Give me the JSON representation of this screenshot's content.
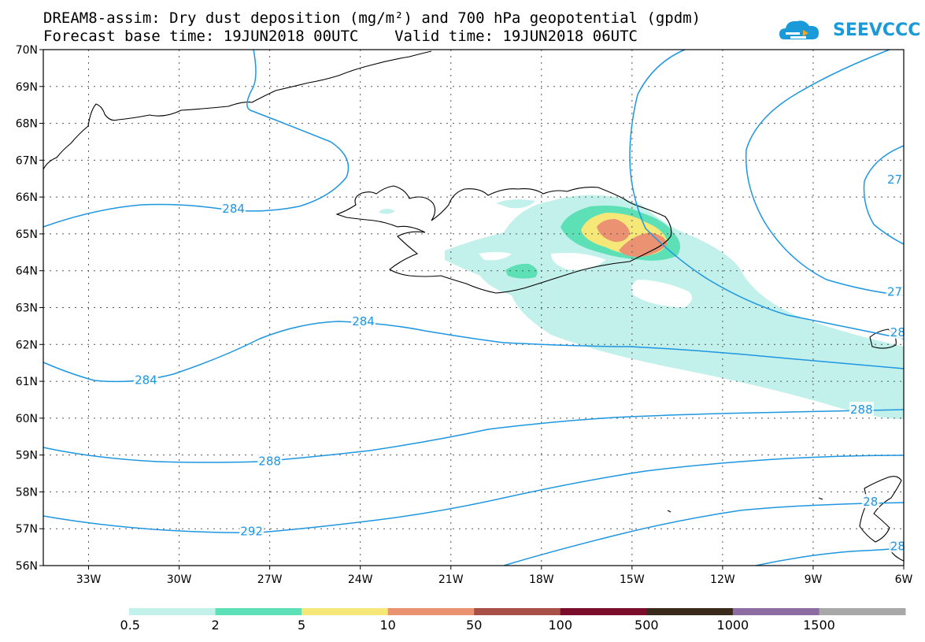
{
  "title_line1": "DREAM8-assim: Dry dust deposition (mg/m²) and 700 hPa geopotential (gpdm)",
  "title_line2": "Forecast base time: 19JUN2018 00UTC    Valid time: 19JUN2018 06UTC",
  "logo": {
    "text": "SEEVCCC",
    "icon": "cloud-logo-icon",
    "color": "#1a9ad9"
  },
  "map": {
    "lon_range": [
      -34.5,
      -6
    ],
    "lat_range": [
      56,
      70
    ],
    "lon_ticks": [
      {
        "v": -33,
        "label": "33W"
      },
      {
        "v": -30,
        "label": "30W"
      },
      {
        "v": -27,
        "label": "27W"
      },
      {
        "v": -24,
        "label": "24W"
      },
      {
        "v": -21,
        "label": "21W"
      },
      {
        "v": -18,
        "label": "18W"
      },
      {
        "v": -15,
        "label": "15W"
      },
      {
        "v": -12,
        "label": "12W"
      },
      {
        "v": -9,
        "label": "9W"
      },
      {
        "v": -6,
        "label": "6W"
      }
    ],
    "lat_ticks": [
      {
        "v": 56,
        "label": "56N"
      },
      {
        "v": 57,
        "label": "57N"
      },
      {
        "v": 58,
        "label": "58N"
      },
      {
        "v": 59,
        "label": "59N"
      },
      {
        "v": 60,
        "label": "60N"
      },
      {
        "v": 61,
        "label": "61N"
      },
      {
        "v": 62,
        "label": "62N"
      },
      {
        "v": 63,
        "label": "63N"
      },
      {
        "v": 64,
        "label": "64N"
      },
      {
        "v": 65,
        "label": "65N"
      },
      {
        "v": 66,
        "label": "66N"
      },
      {
        "v": 67,
        "label": "67N"
      },
      {
        "v": 68,
        "label": "68N"
      },
      {
        "v": 69,
        "label": "69N"
      },
      {
        "v": 70,
        "label": "70N"
      }
    ],
    "grid": true,
    "contour_color": "#1e96e0",
    "contour_labels": [
      {
        "text": "284",
        "lon": -28.2,
        "lat": 65.7
      },
      {
        "text": "284",
        "lon": -23.9,
        "lat": 62.65
      },
      {
        "text": "284",
        "lon": -31.1,
        "lat": 61.05
      },
      {
        "text": "288",
        "lon": -27.0,
        "lat": 58.85
      },
      {
        "text": "292",
        "lon": -27.6,
        "lat": 56.95
      },
      {
        "text": "288",
        "lon": -7.4,
        "lat": 60.25
      },
      {
        "text": "27",
        "lon": -6.3,
        "lat": 66.5
      },
      {
        "text": "27",
        "lon": -6.3,
        "lat": 63.45
      },
      {
        "text": "28",
        "lon": -6.2,
        "lat": 62.35
      },
      {
        "text": "28",
        "lon": -7.1,
        "lat": 57.75
      },
      {
        "text": "28",
        "lon": -6.2,
        "lat": 56.55
      }
    ]
  },
  "legend": {
    "colors": [
      "#c2f0ea",
      "#5ee0b7",
      "#f6e878",
      "#ea9272",
      "#a85048",
      "#7a0c2c",
      "#3a2a1c",
      "#8c6ca2",
      "#a8a8a8"
    ],
    "labels": [
      "0.5",
      "2",
      "5",
      "10",
      "50",
      "100",
      "500",
      "1000",
      "1500"
    ]
  }
}
